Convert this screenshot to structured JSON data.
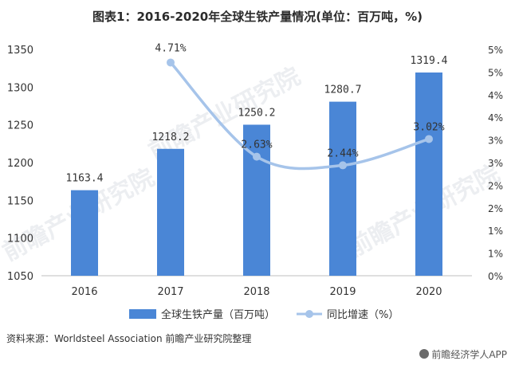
{
  "title": "图表1：2016-2020年全球生铁产量情况(单位：百万吨，%)",
  "source": "资料来源：Worldsteel Association 前瞻产业研究院整理",
  "brand": "前瞻经济学人APP",
  "watermark": "前瞻产业研究院",
  "colors": {
    "bar": "#4a86d6",
    "line": "#a6c4ea",
    "marker": "#a6c4ea"
  },
  "chart_data": {
    "type": "bar",
    "categories": [
      "2016",
      "2017",
      "2018",
      "2019",
      "2020"
    ],
    "series": [
      {
        "name": "全球生铁产量（百万吨）",
        "type": "bar",
        "axis": "left",
        "values": [
          1163.4,
          1218.2,
          1250.2,
          1280.7,
          1319.4
        ],
        "labels": [
          "1163.4",
          "1218.2",
          "1250.2",
          "1280.7",
          "1319.4"
        ]
      },
      {
        "name": "同比增速（%）",
        "type": "line",
        "axis": "right",
        "values": [
          null,
          4.71,
          2.63,
          2.44,
          3.02
        ],
        "labels": [
          "",
          "4.71%",
          "2.63%",
          "2.44%",
          "3.02%"
        ]
      }
    ],
    "y_left": {
      "min": 1050,
      "max": 1350,
      "ticks": [
        "1050",
        "1100",
        "1150",
        "1200",
        "1250",
        "1300",
        "1350"
      ]
    },
    "y_right": {
      "min": 0,
      "max": 5,
      "ticks": [
        "0%",
        "1%",
        "1%",
        "2%",
        "2%",
        "3%",
        "3%",
        "4%",
        "4%",
        "5%",
        "5%"
      ]
    },
    "legend": "bottom",
    "grid": false
  }
}
